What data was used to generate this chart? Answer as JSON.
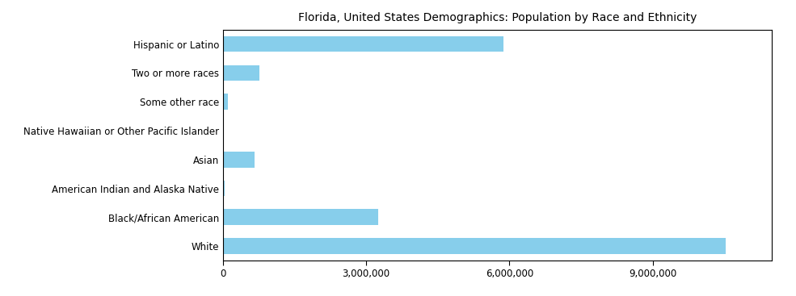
{
  "title": "Florida, United States Demographics: Population by Race and Ethnicity",
  "categories": [
    "White",
    "Black/African American",
    "American Indian and Alaska Native",
    "Asian",
    "Native Hawaiian or Other Pacific Islander",
    "Some other race",
    "Two or more races",
    "Hispanic or Latino"
  ],
  "values": [
    10530000,
    3260000,
    45000,
    660000,
    18000,
    100000,
    760000,
    5870000
  ],
  "bar_color": "#87CEEB",
  "background_color": "#ffffff",
  "xlim": [
    0,
    11500000
  ],
  "xtick_values": [
    0,
    3000000,
    6000000,
    9000000
  ],
  "title_fontsize": 10,
  "label_fontsize": 8.5
}
